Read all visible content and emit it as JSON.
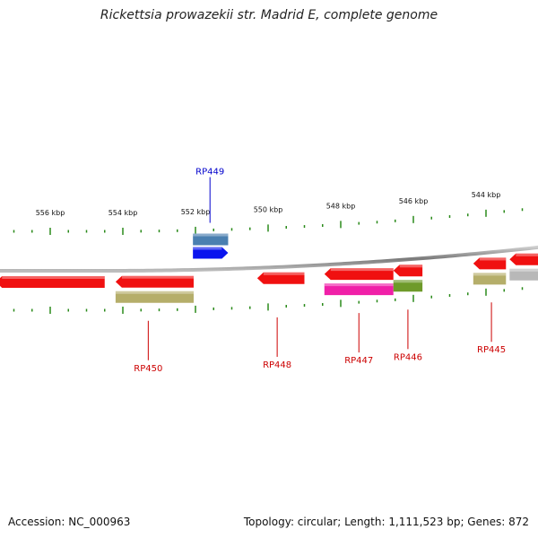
{
  "title": "Rickettsia prowazekii str. Madrid E, complete genome",
  "footer": {
    "accession": "Accession: NC_000963",
    "summary": "Topology: circular; Length: 1,111,523 bp; Genes: 872"
  },
  "colors": {
    "backbone": "#8f8f8f",
    "tick": "#2a8a1a",
    "label_blue": "#0000cc",
    "label_red": "#cc0000"
  },
  "scale": {
    "unit": "kbp",
    "ticks": [
      {
        "kbp": 556,
        "label": "556 kbp"
      },
      {
        "kbp": 554,
        "label": "554 kbp"
      },
      {
        "kbp": 552,
        "label": "552 kbp"
      },
      {
        "kbp": 550,
        "label": "550 kbp"
      },
      {
        "kbp": 548,
        "label": "548 kbp"
      },
      {
        "kbp": 546,
        "label": "546 kbp"
      },
      {
        "kbp": 544,
        "label": "544 kbp"
      }
    ]
  },
  "genes": [
    {
      "id": "g-forward-blue",
      "strand": "+",
      "ring": 1,
      "start_kbp": 552.07,
      "end_kbp": 551.1,
      "color": "#0a14ee"
    },
    {
      "id": "g-forward-steel",
      "strand": "+",
      "ring": 2,
      "start_kbp": 552.07,
      "end_kbp": 551.1,
      "color": "#4a7fb0"
    },
    {
      "id": "g-reverse-red-1",
      "strand": "-",
      "ring": 1,
      "start_kbp": 557.5,
      "end_kbp": 554.5,
      "color": "#f01010"
    },
    {
      "id": "g-reverse-red-2",
      "strand": "-",
      "ring": 1,
      "start_kbp": 554.2,
      "end_kbp": 552.05,
      "color": "#f01010"
    },
    {
      "id": "g-reverse-olive-1",
      "strand": "-",
      "ring": 2,
      "start_kbp": 554.2,
      "end_kbp": 552.05,
      "color": "#b5ae6a"
    },
    {
      "id": "g-reverse-red-3",
      "strand": "-",
      "ring": 1,
      "start_kbp": 550.3,
      "end_kbp": 549.0,
      "color": "#f01010"
    },
    {
      "id": "g-reverse-red-4",
      "strand": "-",
      "ring": 1,
      "start_kbp": 548.45,
      "end_kbp": 546.55,
      "color": "#f01010"
    },
    {
      "id": "g-reverse-magenta",
      "strand": "-",
      "ring": 2,
      "start_kbp": 548.45,
      "end_kbp": 546.55,
      "color": "#f020a8"
    },
    {
      "id": "g-reverse-red-5",
      "strand": "-",
      "ring": 1,
      "start_kbp": 546.55,
      "end_kbp": 545.75,
      "color": "#f01010"
    },
    {
      "id": "g-reverse-green",
      "strand": "-",
      "ring": 2,
      "start_kbp": 546.55,
      "end_kbp": 545.75,
      "color": "#6e9a2a"
    },
    {
      "id": "g-reverse-red-6",
      "strand": "-",
      "ring": 1,
      "start_kbp": 544.35,
      "end_kbp": 543.45,
      "color": "#f01010"
    },
    {
      "id": "g-reverse-olive-2",
      "strand": "-",
      "ring": 2,
      "start_kbp": 544.35,
      "end_kbp": 543.45,
      "color": "#b5ae6a"
    },
    {
      "id": "g-reverse-red-7",
      "strand": "-",
      "ring": 1,
      "start_kbp": 543.35,
      "end_kbp": 542.2,
      "color": "#f01010"
    },
    {
      "id": "g-reverse-gray",
      "strand": "-",
      "ring": 2,
      "start_kbp": 543.35,
      "end_kbp": 542.2,
      "color": "#b8b8b8"
    }
  ],
  "labels": [
    {
      "text": "RP449",
      "side": "top",
      "kbp": 551.6,
      "color": "#0000cc"
    },
    {
      "text": "RP450",
      "side": "bottom",
      "kbp": 553.3,
      "color": "#cc0000"
    },
    {
      "text": "RP448",
      "side": "bottom",
      "kbp": 549.75,
      "color": "#cc0000"
    },
    {
      "text": "RP447",
      "side": "bottom",
      "kbp": 547.5,
      "color": "#cc0000"
    },
    {
      "text": "RP446",
      "side": "bottom",
      "kbp": 546.15,
      "color": "#cc0000"
    },
    {
      "text": "RP445",
      "side": "bottom",
      "kbp": 543.85,
      "color": "#cc0000"
    }
  ]
}
